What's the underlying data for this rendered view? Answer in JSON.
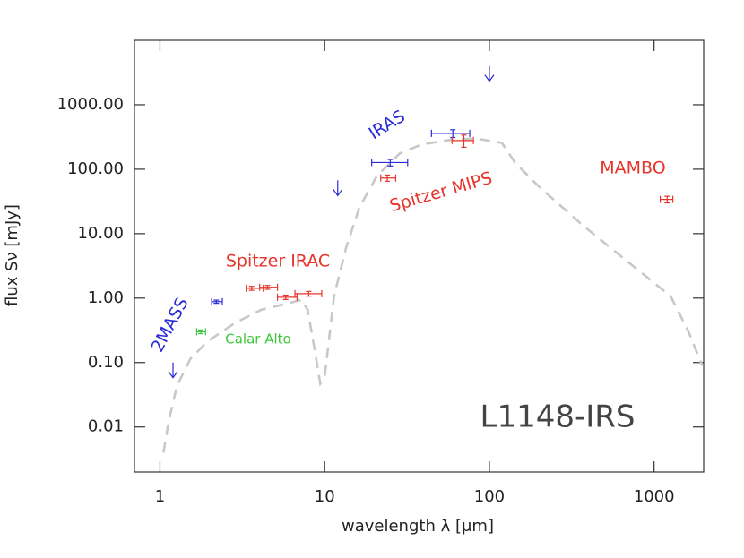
{
  "chart_data": {
    "type": "sed",
    "xlabel": "wavelength λ [μm]",
    "ylabel": "flux Sν [mJy]",
    "xscale": "log",
    "yscale": "log",
    "xlim": [
      0.7,
      2000
    ],
    "ylim": [
      0.002,
      10000
    ],
    "xticks": [
      1,
      10,
      100,
      1000
    ],
    "yticks": [
      {
        "value": 0.01,
        "label": "0.01"
      },
      {
        "value": 0.1,
        "label": "0.10"
      },
      {
        "value": 1,
        "label": "1.00"
      },
      {
        "value": 10,
        "label": "10.00"
      },
      {
        "value": 100,
        "label": "100.00"
      },
      {
        "value": 1000,
        "label": "1000.00"
      }
    ],
    "annotations": [
      "L1148-IRS"
    ],
    "model": {
      "color": "#c8c8c8",
      "x": [
        1.05,
        1.13,
        1.27,
        1.53,
        1.96,
        2.85,
        4.13,
        6.0,
        7.23,
        7.88,
        8.7,
        9.4,
        10.0,
        11.4,
        13.5,
        16.3,
        20.8,
        28.5,
        38.6,
        56.4,
        82,
        119,
        143,
        195,
        366,
        680,
        1260,
        1620,
        1960
      ],
      "values": [
        0.004,
        0.0123,
        0.044,
        0.114,
        0.216,
        0.41,
        0.66,
        0.83,
        0.94,
        0.66,
        0.157,
        0.047,
        0.06,
        1.07,
        6.1,
        26,
        79,
        175,
        241,
        283,
        301,
        257,
        127,
        57,
        13.7,
        3.8,
        1.07,
        0.3,
        0.089
      ]
    },
    "series": [
      {
        "name": "2MASS",
        "color": "#2b2bd6",
        "x": [
          2.2
        ],
        "values": [
          0.88
        ],
        "xlo": [
          2.06
        ],
        "xhi": [
          2.39
        ],
        "yerr": [
          0.05
        ],
        "limits": {
          "x": [
            1.2
          ],
          "values": [
            0.1
          ]
        }
      },
      {
        "name": "Calar Alto",
        "color": "#3cc83c",
        "x": [
          1.77
        ],
        "values": [
          0.3
        ],
        "xlo": [
          1.67
        ],
        "xhi": [
          1.89
        ],
        "yerr": [
          0.02
        ]
      },
      {
        "name": "Spitzer IRAC",
        "color": "#e8332a",
        "x": [
          3.6,
          4.5,
          5.8,
          8.0
        ],
        "values": [
          1.42,
          1.47,
          1.03,
          1.17
        ],
        "xlo": [
          3.34,
          4.03,
          5.17,
          6.6
        ],
        "xhi": [
          4.24,
          5.17,
          6.8,
          9.6
        ],
        "yerr": [
          0.1,
          0.1,
          0.08,
          0.1
        ]
      },
      {
        "name": "IRAS",
        "color": "#2b2bd6",
        "x": [
          25,
          60
        ],
        "values": [
          127,
          360
        ],
        "xlo": [
          19.3,
          44.5
        ],
        "xhi": [
          31.9,
          76
        ],
        "yerr": [
          15,
          50
        ],
        "limits": {
          "x": [
            12,
            100
          ],
          "values": [
            67,
            4000
          ]
        }
      },
      {
        "name": "Spitzer MIPS",
        "color": "#e8332a",
        "x": [
          24,
          70
        ],
        "values": [
          73,
          279
        ],
        "xlo": [
          21.9,
          59.3
        ],
        "xhi": [
          27.0,
          80
        ],
        "yerr": [
          8,
          60
        ]
      },
      {
        "name": "MAMBO",
        "color": "#e8332a",
        "x": [
          1200
        ],
        "values": [
          34
        ],
        "xlo": [
          1090
        ],
        "xhi": [
          1300
        ],
        "yerr": [
          4
        ]
      }
    ]
  }
}
